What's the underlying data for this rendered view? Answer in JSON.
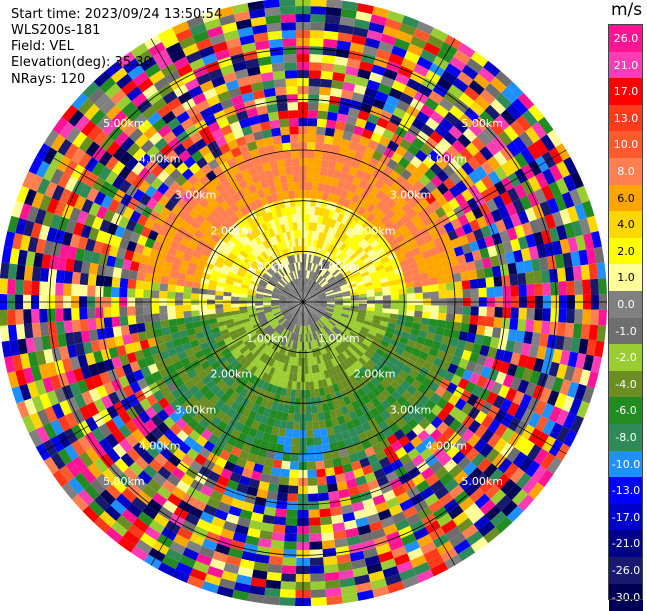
{
  "header": {
    "start_time": "Start time: 2023/09/24 13:50:54",
    "instrument": "WLS200s-181",
    "field": "Field: VEL",
    "elevation": "Elevation(deg): 35.30",
    "nrays": "NRays: 120"
  },
  "colorbar": {
    "unit": "m/s",
    "levels": [
      "26.0",
      "21.0",
      "17.0",
      "13.0",
      "10.0",
      "8.0",
      "6.0",
      "4.0",
      "2.0",
      "1.0",
      "0.0",
      "-1.0",
      "-2.0",
      "-4.0",
      "-6.0",
      "-8.0",
      "-10.0",
      "-13.0",
      "-17.0",
      "-21.0",
      "-26.0",
      "-30.0"
    ],
    "colors": [
      "#ff1493",
      "#ff3cb4",
      "#ff0000",
      "#ff3b1c",
      "#ff5a2d",
      "#ff7f50",
      "#ffa500",
      "#ffd700",
      "#ffff00",
      "#ffff99",
      "#808080",
      "#6e6e6e",
      "#9acd32",
      "#6b8e23",
      "#228b22",
      "#2e8b57",
      "#1e90ff",
      "#0000ff",
      "#0000cd",
      "#00008b",
      "#191970",
      "#000055"
    ]
  },
  "chart_data": {
    "type": "heatmap",
    "projection": "polar PPI",
    "field": "VEL",
    "units": "m/s",
    "nrays": 120,
    "elevation_deg": 35.3,
    "range_rings_km": [
      1.0,
      2.0,
      3.0,
      4.0,
      5.0
    ],
    "ring_labels": [
      "1.00km",
      "2.00km",
      "3.00km",
      "4.00km",
      "5.00km"
    ],
    "max_range_km": 6.0,
    "valid_signal_range_km": 3.2,
    "velocity_pattern": {
      "north_half_upper_ring": "positive 8 to 10 m/s (orange)",
      "north_half_inner_ring": "positive 1 to 4 m/s (yellow)",
      "near_center": "about 0 m/s (gray)",
      "south_half_inner": "negative -2 to -4 m/s (yellow-green)",
      "south_half_outer": "negative -4 to -8 m/s (green)",
      "south_small_patch": "about -10 m/s (blue)",
      "beyond_valid_range": "noise across full scale -30 to 26 m/s"
    }
  }
}
